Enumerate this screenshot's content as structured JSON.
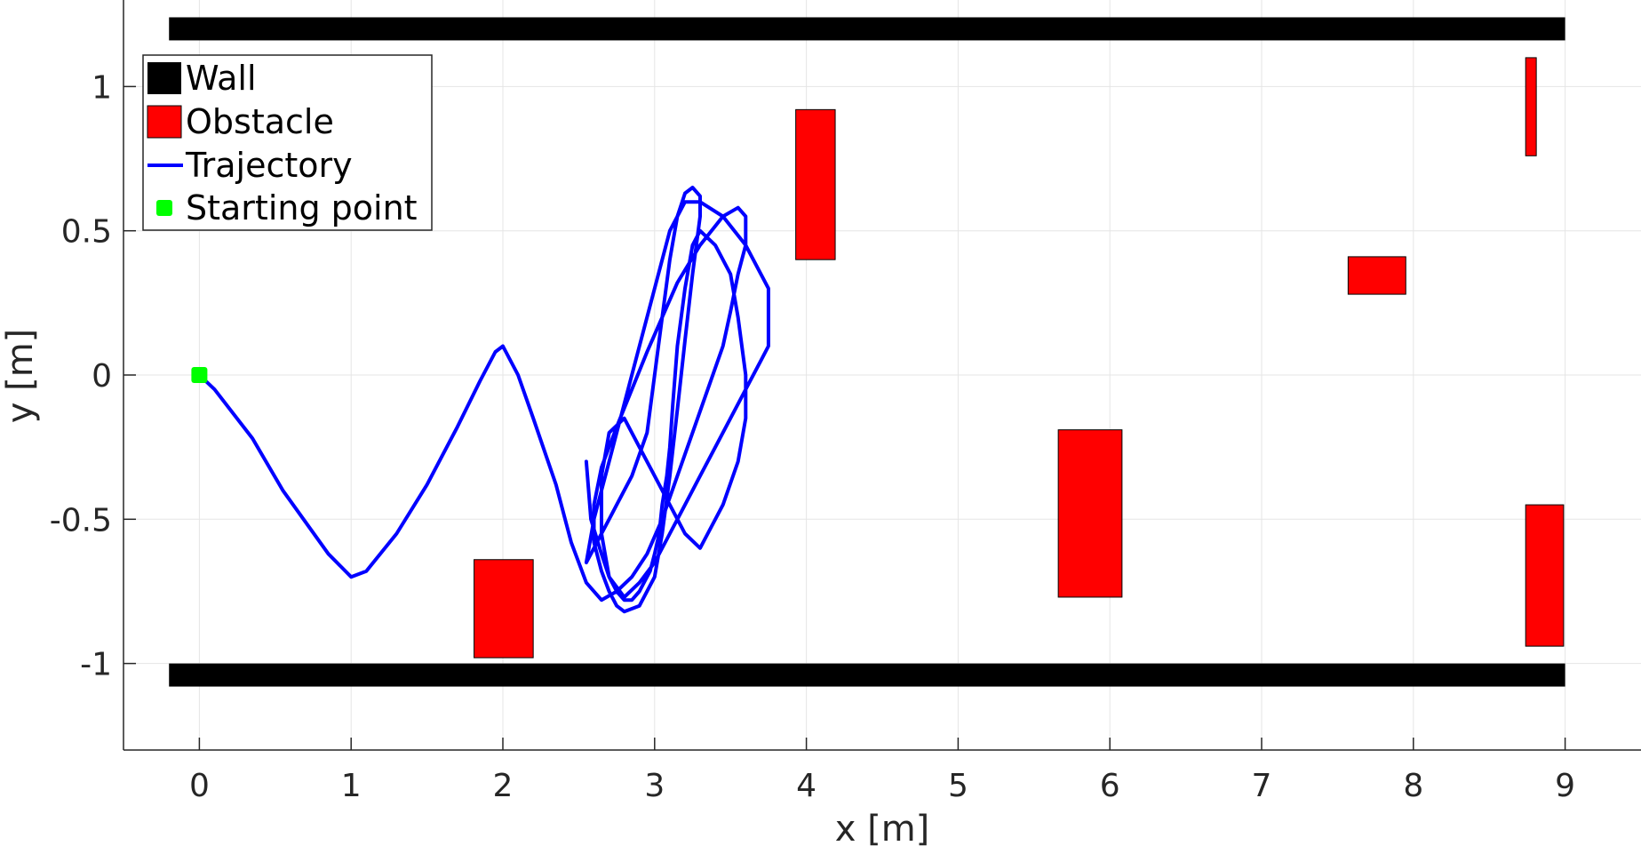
{
  "chart_data": {
    "type": "line",
    "xlabel": "x [m]",
    "ylabel": "y [m]",
    "xlim": [
      -0.5,
      9.5
    ],
    "ylim": [
      -1.3,
      1.3
    ],
    "x_ticks": [
      0,
      1,
      2,
      3,
      4,
      5,
      6,
      7,
      8,
      9
    ],
    "y_ticks": [
      -1,
      -0.5,
      0,
      0.5,
      1
    ],
    "grid": true,
    "legend_position": "top-left",
    "colors": {
      "wall": "#000000",
      "obstacle": "#ff0000",
      "trajectory": "#0000ff",
      "start": "#00ff00",
      "grid": "#e5e5e5",
      "axis": "#262626"
    },
    "legend": [
      {
        "label": "Wall",
        "kind": "wall"
      },
      {
        "label": "Obstacle",
        "kind": "obstacle"
      },
      {
        "label": "Trajectory",
        "kind": "trajectory"
      },
      {
        "label": "Starting point",
        "kind": "start"
      }
    ],
    "walls": [
      {
        "x": [
          -0.2,
          9.0
        ],
        "y": [
          1.16,
          1.24
        ]
      },
      {
        "x": [
          -0.2,
          9.0
        ],
        "y": [
          -1.08,
          -1.0
        ]
      }
    ],
    "obstacles": [
      {
        "x": [
          3.93,
          4.19
        ],
        "y": [
          0.4,
          0.92
        ]
      },
      {
        "x": [
          1.81,
          2.2
        ],
        "y": [
          -0.98,
          -0.64
        ]
      },
      {
        "x": [
          5.66,
          6.08
        ],
        "y": [
          -0.77,
          -0.19
        ]
      },
      {
        "x": [
          7.57,
          7.95
        ],
        "y": [
          0.28,
          0.41
        ]
      },
      {
        "x": [
          8.74,
          8.81
        ],
        "y": [
          0.76,
          1.1
        ]
      },
      {
        "x": [
          8.74,
          8.99
        ],
        "y": [
          -0.94,
          -0.45
        ]
      }
    ],
    "start_point": {
      "x": 0.0,
      "y": 0.0
    },
    "trajectory": {
      "name": "Trajectory",
      "x": [
        0.0,
        0.1,
        0.35,
        0.55,
        0.85,
        1.0,
        1.1,
        1.3,
        1.5,
        1.7,
        1.85,
        1.95,
        2.0,
        2.1,
        2.2,
        2.35,
        2.45,
        2.55,
        2.65,
        2.75,
        2.85,
        2.95,
        3.05,
        3.15,
        3.25,
        3.35,
        3.45,
        3.5,
        3.55,
        3.6,
        3.6,
        3.55,
        3.45,
        3.3,
        3.15,
        3.05,
        2.95,
        2.85,
        2.75,
        2.65,
        2.6,
        2.6,
        2.65,
        2.7,
        2.75,
        2.8,
        2.9,
        3.0,
        3.05,
        3.1,
        3.15,
        3.2,
        3.25,
        3.3,
        3.3,
        3.25,
        3.2,
        3.15,
        3.1,
        3.05,
        3.0,
        2.95,
        2.85,
        2.75,
        2.7,
        2.65,
        2.6,
        2.55,
        2.6,
        2.7,
        2.8,
        2.9,
        3.0,
        3.1,
        3.2,
        3.3,
        3.45,
        3.6,
        3.75,
        3.75,
        3.7,
        3.6,
        3.5,
        3.4,
        3.3,
        3.2,
        3.1,
        3.0,
        2.9,
        2.8,
        2.7,
        2.65,
        2.65,
        2.7,
        2.8,
        2.9,
        3.0,
        3.1,
        3.2,
        3.3,
        3.35,
        3.45,
        3.55,
        3.6,
        3.6,
        3.55,
        3.5,
        3.4,
        3.3,
        3.25,
        3.2,
        3.15,
        3.12,
        3.1,
        3.08,
        3.05,
        3.03,
        3.0,
        2.97,
        2.93,
        2.9,
        2.85,
        2.8,
        2.75,
        2.7,
        2.65,
        2.58,
        2.55
      ],
      "y": [
        0.0,
        -0.05,
        -0.22,
        -0.4,
        -0.62,
        -0.7,
        -0.68,
        -0.55,
        -0.38,
        -0.18,
        -0.02,
        0.08,
        0.1,
        0.0,
        -0.15,
        -0.38,
        -0.58,
        -0.72,
        -0.78,
        -0.75,
        -0.7,
        -0.62,
        -0.5,
        -0.35,
        -0.2,
        -0.05,
        0.1,
        0.22,
        0.35,
        0.45,
        0.55,
        0.58,
        0.55,
        0.45,
        0.32,
        0.2,
        0.08,
        -0.05,
        -0.18,
        -0.32,
        -0.45,
        -0.58,
        -0.68,
        -0.75,
        -0.8,
        -0.82,
        -0.8,
        -0.7,
        -0.55,
        -0.35,
        -0.12,
        0.12,
        0.35,
        0.55,
        0.62,
        0.65,
        0.63,
        0.55,
        0.4,
        0.2,
        0.0,
        -0.2,
        -0.35,
        -0.45,
        -0.5,
        -0.55,
        -0.6,
        -0.65,
        -0.5,
        -0.3,
        -0.1,
        0.1,
        0.3,
        0.5,
        0.6,
        0.6,
        0.55,
        0.45,
        0.3,
        0.1,
        0.05,
        -0.05,
        -0.15,
        -0.25,
        -0.35,
        -0.45,
        -0.55,
        -0.65,
        -0.72,
        -0.77,
        -0.7,
        -0.55,
        -0.35,
        -0.2,
        -0.15,
        -0.25,
        -0.35,
        -0.45,
        -0.55,
        -0.6,
        -0.55,
        -0.45,
        -0.3,
        -0.15,
        0.0,
        0.2,
        0.35,
        0.45,
        0.5,
        0.45,
        0.3,
        0.1,
        -0.1,
        -0.25,
        -0.35,
        -0.45,
        -0.55,
        -0.62,
        -0.68,
        -0.72,
        -0.75,
        -0.78,
        -0.78,
        -0.75,
        -0.7,
        -0.62,
        -0.5,
        -0.3
      ]
    }
  }
}
